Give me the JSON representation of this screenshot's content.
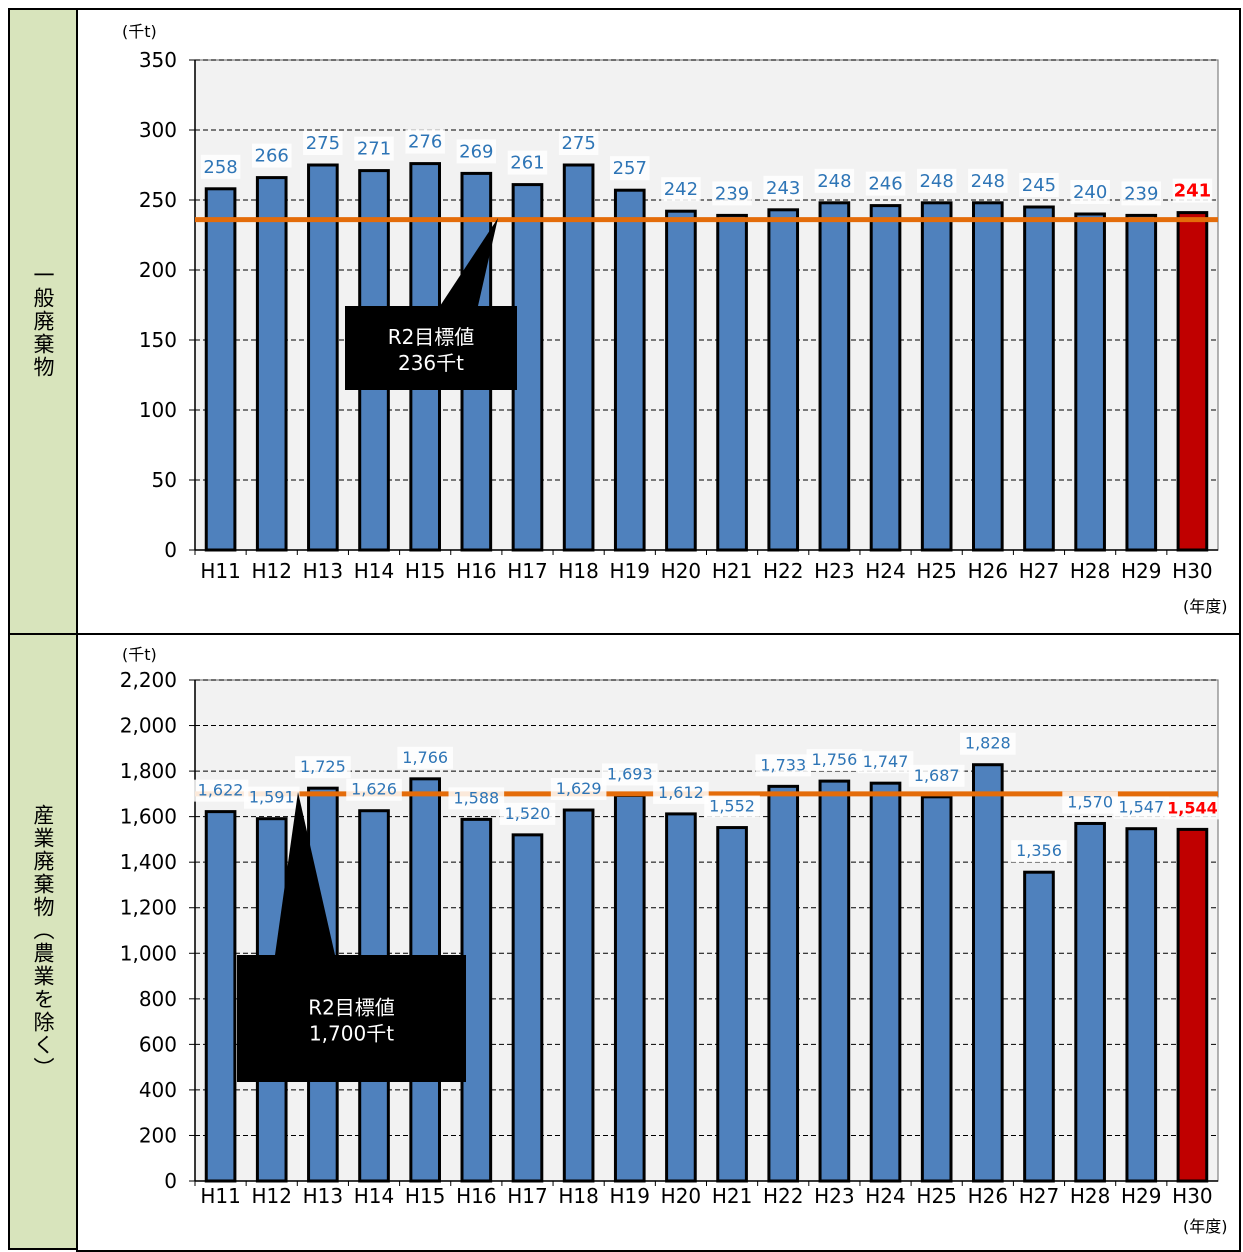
{
  "row_labels": [
    "一般廃棄物",
    "産業廃棄物（農業を除く）"
  ],
  "colors": {
    "bar": "#4f81bd",
    "bar_highlight": "#c00000",
    "target_line": "#e46c0a",
    "plot_bg": "#f2f2f2",
    "label_blue": "#2e75b6",
    "label_red": "#ff0000",
    "callout_bg": "#000000",
    "row_label_bg": "#d8e4bc"
  },
  "chart_data": [
    {
      "type": "bar",
      "unit": "(千t)",
      "xunit": "(年度)",
      "categories": [
        "H11",
        "H12",
        "H13",
        "H14",
        "H15",
        "H16",
        "H17",
        "H18",
        "H19",
        "H20",
        "H21",
        "H22",
        "H23",
        "H24",
        "H25",
        "H26",
        "H27",
        "H28",
        "H29",
        "H30"
      ],
      "values": [
        258,
        266,
        275,
        271,
        276,
        269,
        261,
        275,
        257,
        242,
        239,
        243,
        248,
        246,
        248,
        248,
        245,
        240,
        239,
        241
      ],
      "value_labels": [
        "258",
        "266",
        "275",
        "271",
        "276",
        "269",
        "261",
        "275",
        "257",
        "242",
        "239",
        "243",
        "248",
        "246",
        "248",
        "248",
        "245",
        "240",
        "239",
        "241"
      ],
      "highlight_index": 19,
      "ylim": [
        0,
        350
      ],
      "yticks": [
        0,
        50,
        100,
        150,
        200,
        250,
        300,
        350
      ],
      "ytick_labels": [
        "0",
        "50",
        "100",
        "150",
        "200",
        "250",
        "300",
        "350"
      ],
      "target": 236,
      "callout": [
        "R2目標値",
        "236千t"
      ]
    },
    {
      "type": "bar",
      "unit": "(千t)",
      "xunit": "(年度)",
      "categories": [
        "H11",
        "H12",
        "H13",
        "H14",
        "H15",
        "H16",
        "H17",
        "H18",
        "H19",
        "H20",
        "H21",
        "H22",
        "H23",
        "H24",
        "H25",
        "H26",
        "H27",
        "H28",
        "H29",
        "H30"
      ],
      "values": [
        1622,
        1591,
        1725,
        1626,
        1766,
        1588,
        1520,
        1629,
        1693,
        1612,
        1552,
        1733,
        1756,
        1747,
        1687,
        1828,
        1356,
        1570,
        1547,
        1544
      ],
      "value_labels": [
        "1,622",
        "1,591",
        "1,725",
        "1,626",
        "1,766",
        "1,588",
        "1,520",
        "1,629",
        "1,693",
        "1,612",
        "1,552",
        "1,733",
        "1,756",
        "1,747",
        "1,687",
        "1,828",
        "1,356",
        "1,570",
        "1,547",
        "1,544"
      ],
      "highlight_index": 19,
      "ylim": [
        0,
        2200
      ],
      "yticks": [
        0,
        200,
        400,
        600,
        800,
        1000,
        1200,
        1400,
        1600,
        1800,
        2000,
        2200
      ],
      "ytick_labels": [
        "0",
        "200",
        "400",
        "600",
        "800",
        "1,000",
        "1,200",
        "1,400",
        "1,600",
        "1,800",
        "2,000",
        "2,200"
      ],
      "target": 1700,
      "callout": [
        "R2目標値",
        "1,700千t"
      ]
    }
  ]
}
